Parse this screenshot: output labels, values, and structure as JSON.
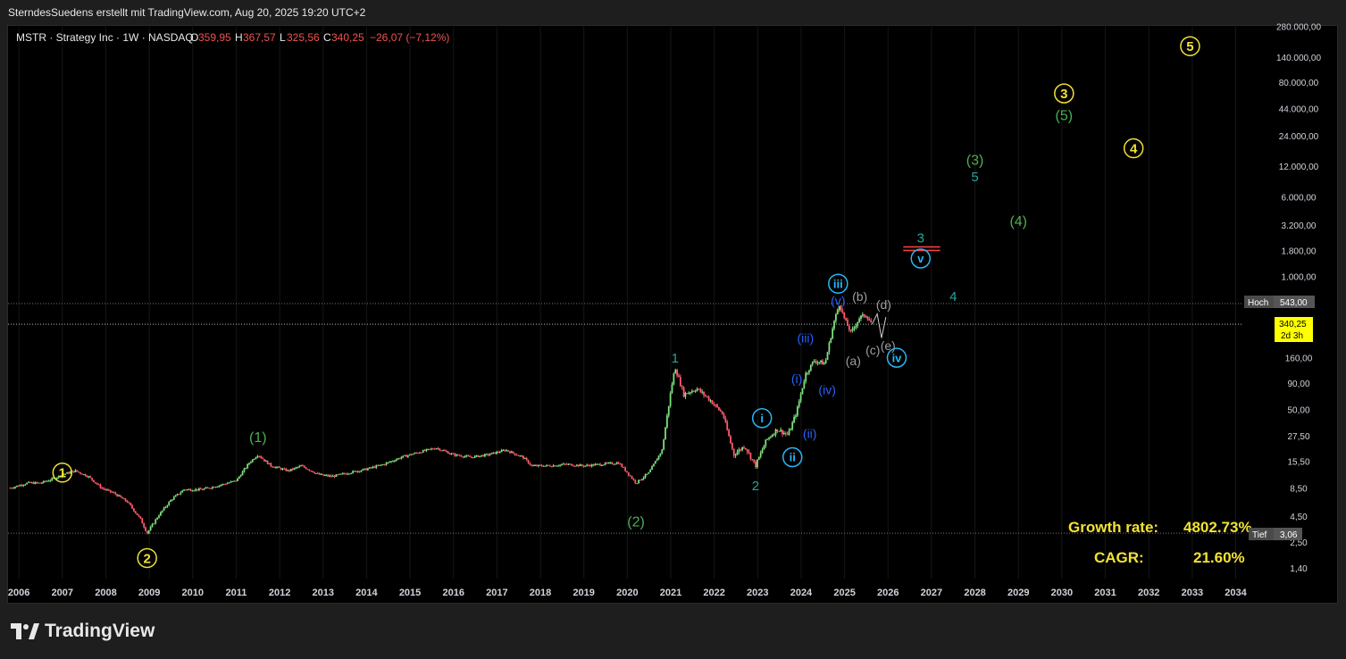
{
  "header": {
    "attribution": "SterndesSuedens erstellt mit TradingView.com, Aug 20, 2025 19:20 UTC+2"
  },
  "symbol": {
    "name": "MSTR · Strategy Inc · 1W · NASDAQ",
    "o_label": "O",
    "o_value": "359,95",
    "h_label": "H",
    "h_value": "367,57",
    "l_label": "L",
    "l_value": "325,56",
    "c_label": "C",
    "c_value": "340,25",
    "change": "−26,07 (−7,12%)"
  },
  "colors": {
    "background": "#000000",
    "text": "#d1d4dc",
    "up": "#26a69a",
    "down": "#ef5350",
    "bull_candle": "#7ee07e",
    "bear_candle": "#ff5a6e",
    "primary_wave": "#f2e234",
    "intermediate_wave": "#4caf50",
    "minor_wave": "#26a69a",
    "minute_wave": "#29b6f6",
    "minuette_wave": "#2962ff",
    "correction": "#9e9e9e",
    "target_line": "#ff4545",
    "price_tag": "#ffff00"
  },
  "price_axis": {
    "labels": [
      "280.000,00",
      "140.000,00",
      "80.000,00",
      "44.000,00",
      "24.000,00",
      "12.000,00",
      "6.000,00",
      "3.200,00",
      "1.800,00",
      "1.000,00",
      "160,00",
      "90,00",
      "50,00",
      "27,50",
      "15,50",
      "8,50",
      "4,50",
      "2,50",
      "1,40"
    ],
    "high": {
      "label": "Hoch",
      "value": "543,00"
    },
    "low": {
      "label": "Tief",
      "value": "3,06"
    },
    "current": {
      "value": "340,25",
      "countdown": "2d 3h"
    }
  },
  "time_axis": [
    "2006",
    "2007",
    "2008",
    "2009",
    "2010",
    "2011",
    "2012",
    "2013",
    "2014",
    "2015",
    "2016",
    "2017",
    "2018",
    "2019",
    "2020",
    "2021",
    "2022",
    "2023",
    "2024",
    "2025",
    "2026",
    "2027",
    "2028",
    "2029",
    "2030",
    "2031",
    "2032",
    "2033",
    "2034"
  ],
  "stats": {
    "growth_label": "Growth rate:",
    "growth_value": "4802.73%",
    "cagr_label": "CAGR:",
    "cagr_value": "21.60%"
  },
  "wave_labels": [
    {
      "text": "1",
      "year": 2007.0,
      "price": 12,
      "style": "circle-primary"
    },
    {
      "text": "2",
      "year": 2008.95,
      "price": 1.75,
      "style": "circle-primary"
    },
    {
      "text": "(1)",
      "year": 2011.5,
      "price": 27,
      "style": "intermediate"
    },
    {
      "text": "(2)",
      "year": 2020.2,
      "price": 4.0,
      "style": "intermediate"
    },
    {
      "text": "1",
      "year": 2021.1,
      "price": 160,
      "style": "minor"
    },
    {
      "text": "2",
      "year": 2022.95,
      "price": 9,
      "style": "minor"
    },
    {
      "text": "i",
      "year": 2023.1,
      "price": 41,
      "style": "circle-minute"
    },
    {
      "text": "ii",
      "year": 2023.8,
      "price": 17,
      "style": "circle-minute"
    },
    {
      "text": "(i)",
      "year": 2023.9,
      "price": 100,
      "style": "minuette"
    },
    {
      "text": "(ii)",
      "year": 2024.2,
      "price": 29,
      "style": "minuette"
    },
    {
      "text": "(iii)",
      "year": 2024.1,
      "price": 250,
      "style": "minuette"
    },
    {
      "text": "(iv)",
      "year": 2024.6,
      "price": 78,
      "style": "minuette"
    },
    {
      "text": "(v)",
      "year": 2024.85,
      "price": 580,
      "style": "minuette"
    },
    {
      "text": "iii",
      "year": 2024.85,
      "price": 850,
      "style": "circle-minute"
    },
    {
      "text": "(a)",
      "year": 2025.2,
      "price": 150,
      "style": "correction"
    },
    {
      "text": "(b)",
      "year": 2025.35,
      "price": 640,
      "style": "correction"
    },
    {
      "text": "(c)",
      "year": 2025.65,
      "price": 190,
      "style": "correction"
    },
    {
      "text": "(d)",
      "year": 2025.9,
      "price": 530,
      "style": "correction"
    },
    {
      "text": "(e)",
      "year": 2026.0,
      "price": 210,
      "style": "correction"
    },
    {
      "text": "iv",
      "year": 2026.2,
      "price": 160,
      "style": "circle-minute"
    },
    {
      "text": "v",
      "year": 2026.75,
      "price": 1500,
      "style": "circle-minute"
    },
    {
      "text": "3",
      "year": 2026.75,
      "price": 2400,
      "style": "minor"
    },
    {
      "text": "4",
      "year": 2027.5,
      "price": 640,
      "style": "minor"
    },
    {
      "text": "(3)",
      "year": 2028.0,
      "price": 14000,
      "style": "intermediate"
    },
    {
      "text": "5",
      "year": 2028.0,
      "price": 9500,
      "style": "minor"
    },
    {
      "text": "(4)",
      "year": 2029.0,
      "price": 3500,
      "style": "intermediate"
    },
    {
      "text": "3",
      "year": 2030.05,
      "price": 62000,
      "style": "circle-primary"
    },
    {
      "text": "(5)",
      "year": 2030.05,
      "price": 38000,
      "style": "intermediate"
    },
    {
      "text": "4",
      "year": 2031.65,
      "price": 18000,
      "style": "circle-primary"
    },
    {
      "text": "5",
      "year": 2032.95,
      "price": 180000,
      "style": "circle-primary"
    }
  ],
  "chart_data": {
    "type": "candlestick",
    "title": "MSTR · Strategy Inc · 1W · NASDAQ",
    "x_axis": "year",
    "y_scale": "log",
    "ylim": [
      1.1,
      290000
    ],
    "xlim": [
      2005.75,
      2034.75
    ],
    "last": 340.25,
    "high": 543,
    "low": 3.06,
    "series": [
      {
        "x": [
          2005.8,
          2006.2,
          2006.5,
          2006.8,
          2007.0,
          2007.3,
          2007.6,
          2007.9,
          2008.2,
          2008.5,
          2008.8,
          2008.95,
          2009.2,
          2009.5,
          2009.8,
          2010.2,
          2010.6,
          2011.0,
          2011.3,
          2011.5,
          2011.8,
          2012.2,
          2012.5,
          2012.9,
          2013.2,
          2013.6,
          2014.0,
          2014.4,
          2014.8,
          2015.2,
          2015.6,
          2016.0,
          2016.4,
          2016.8,
          2017.2,
          2017.6,
          2017.8,
          2018.2,
          2018.6,
          2019.0,
          2019.4,
          2019.8,
          2020.0,
          2020.2,
          2020.5,
          2020.8,
          2021.0,
          2021.1,
          2021.3,
          2021.6,
          2021.9,
          2022.2,
          2022.45,
          2022.7,
          2022.95,
          2023.2,
          2023.45,
          2023.7,
          2023.9,
          2024.1,
          2024.3,
          2024.55,
          2024.75,
          2024.88,
          2025.0,
          2025.15,
          2025.35,
          2025.5,
          2025.63
        ],
        "y": [
          8.5,
          9.5,
          9.5,
          10.5,
          11.5,
          12.5,
          11,
          8.5,
          7.5,
          6.2,
          4.2,
          3.06,
          4.5,
          6.5,
          8.2,
          8.2,
          9,
          10,
          15,
          18,
          14,
          12.5,
          14,
          11.5,
          11,
          12,
          13,
          14.5,
          17,
          19,
          21,
          18,
          17,
          18,
          20,
          17,
          14,
          14,
          14.5,
          14,
          14.5,
          15,
          12,
          9.5,
          12,
          20,
          75,
          130,
          70,
          80,
          62,
          45,
          18,
          22,
          14,
          25,
          32,
          28,
          48,
          110,
          150,
          140,
          350,
          543,
          380,
          280,
          400,
          420,
          340.25
        ]
      }
    ]
  }
}
